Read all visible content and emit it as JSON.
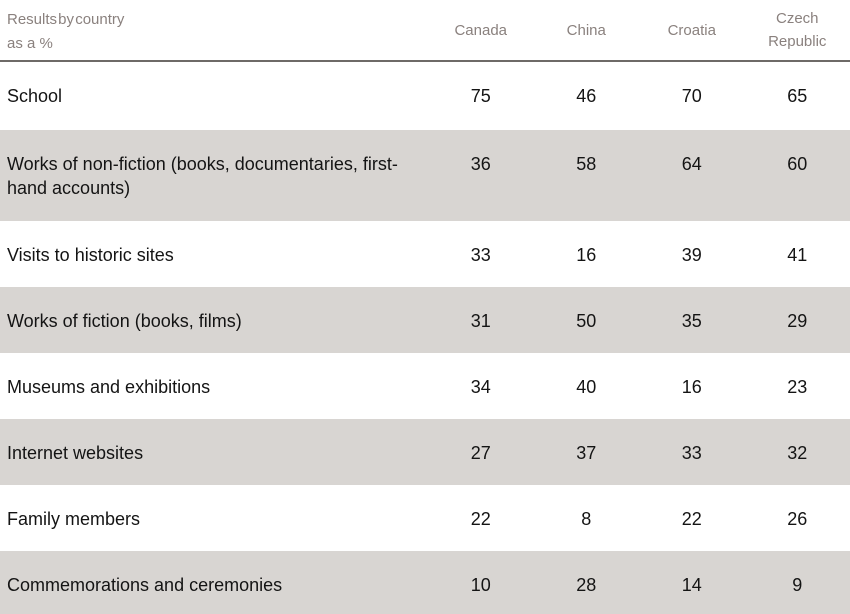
{
  "header": {
    "corner_line1": "Results by country",
    "corner_line2": "as a %"
  },
  "chart_data": {
    "type": "table",
    "title": "Results by country as a %",
    "categories": [
      "Canada",
      "China",
      "Croatia",
      "Czech Republic"
    ],
    "series": [
      {
        "name": "School",
        "values": [
          75,
          46,
          70,
          65
        ]
      },
      {
        "name": "Works of non-fiction (books, documentaries, first-hand accounts)",
        "values": [
          36,
          58,
          64,
          60
        ]
      },
      {
        "name": "Visits to historic sites",
        "values": [
          33,
          16,
          39,
          41
        ]
      },
      {
        "name": "Works of fiction (books, films)",
        "values": [
          31,
          50,
          35,
          29
        ]
      },
      {
        "name": "Museums and exhibitions",
        "values": [
          34,
          40,
          16,
          23
        ]
      },
      {
        "name": "Internet websites",
        "values": [
          27,
          37,
          33,
          32
        ]
      },
      {
        "name": "Family members",
        "values": [
          22,
          8,
          22,
          26
        ]
      },
      {
        "name": "Commemorations and ceremonies",
        "values": [
          10,
          28,
          14,
          9
        ]
      }
    ],
    "layout": {
      "striped_row_indexes": [
        1,
        3,
        5,
        7
      ],
      "legend": "none",
      "grid": "off"
    }
  },
  "colors": {
    "stripe_bg": "#d8d5d2",
    "header_text": "#8a817e",
    "divider": "#6e6a67",
    "body_text": "#141414"
  }
}
